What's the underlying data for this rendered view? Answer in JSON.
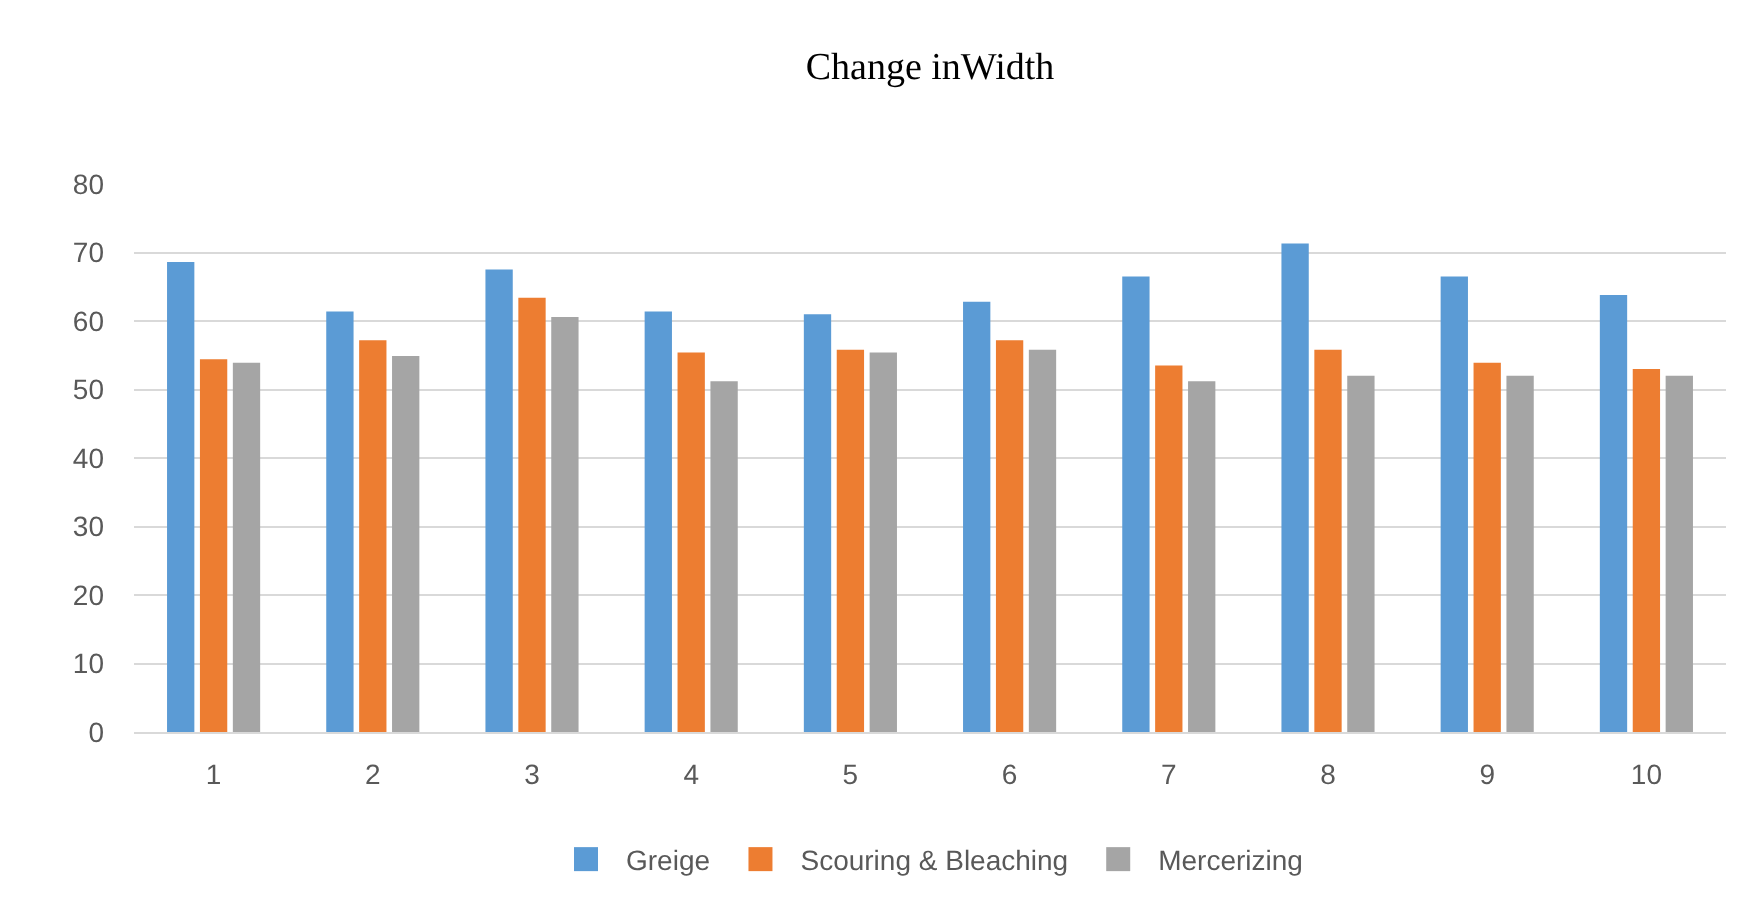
{
  "chart_data": {
    "type": "bar",
    "title": "Change inWidth",
    "categories": [
      "1",
      "2",
      "3",
      "4",
      "5",
      "6",
      "7",
      "8",
      "9",
      "10"
    ],
    "series": [
      {
        "name": "Greige",
        "color": "#5b9bd5",
        "values": [
          68.6,
          61.4,
          67.5,
          61.4,
          61.0,
          62.8,
          66.5,
          71.3,
          66.5,
          63.8
        ]
      },
      {
        "name": "Scouring & Bleaching",
        "color": "#ed7d31",
        "values": [
          54.4,
          57.2,
          63.4,
          55.4,
          55.8,
          57.2,
          53.5,
          55.8,
          53.9,
          53.0
        ]
      },
      {
        "name": "Mercerizing",
        "color": "#a5a5a5",
        "values": [
          53.9,
          54.9,
          60.6,
          51.2,
          55.4,
          55.8,
          51.2,
          52.0,
          52.0,
          52.0
        ]
      }
    ],
    "ylim": [
      0,
      80
    ],
    "yticks": [
      0,
      10,
      20,
      30,
      40,
      50,
      60,
      70,
      80
    ],
    "grid": "y",
    "legend": "bottom"
  }
}
